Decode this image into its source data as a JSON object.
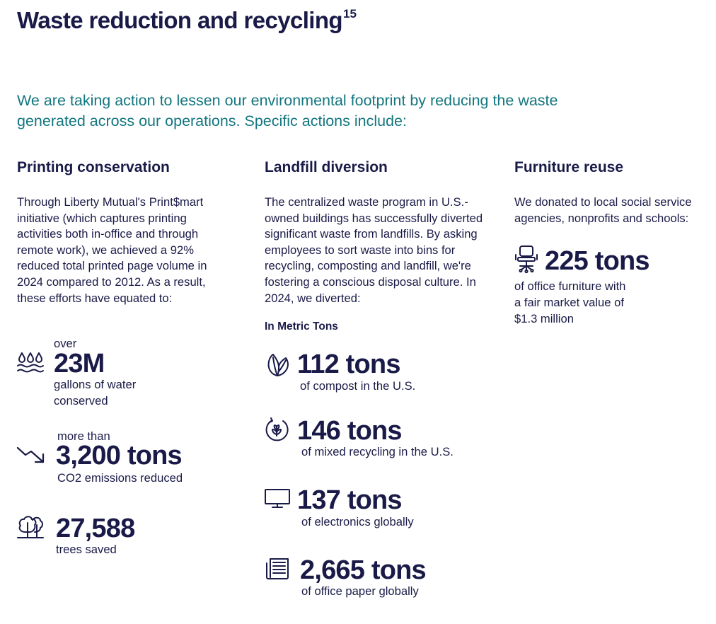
{
  "title": "Waste reduction and recycling",
  "title_footnote": "15",
  "intro": "We are taking action to lessen our environmental footprint by reducing the waste generated across our operations. Specific actions include:",
  "printing": {
    "heading": "Printing conservation",
    "body": "Through Liberty Mutual's Print$mart initiative (which captures printing activities both in-office and through remote work), we achieved a 92% reduced total printed page volume in 2024 compared to 2012. As a result, these efforts have equated to:",
    "stats": [
      {
        "icon": "water-icon",
        "prefix": "over",
        "value": "23M",
        "desc_lines": [
          "gallons of water",
          "conserved"
        ]
      },
      {
        "icon": "trend-down-icon",
        "prefix": "more than",
        "value": "3,200 tons",
        "desc_lines": [
          "CO2 emissions reduced"
        ]
      },
      {
        "icon": "trees-icon",
        "prefix": "",
        "value": "27,588",
        "desc_lines": [
          "trees saved"
        ]
      }
    ]
  },
  "landfill": {
    "heading": "Landfill diversion",
    "body": "The centralized waste program in U.S.- owned buildings has successfully diverted significant waste from landfills. By asking employees to sort waste into bins for recycling, composting and landfill, we're fostering a conscious disposal culture. In 2024, we diverted:",
    "units_label": "In Metric Tons",
    "stats": [
      {
        "icon": "leaf-icon",
        "value": "112 tons",
        "desc": "of compost in the U.S."
      },
      {
        "icon": "recycle-icon",
        "value": "146 tons",
        "desc": "of mixed recycling in the U.S."
      },
      {
        "icon": "monitor-icon",
        "value": "137 tons",
        "desc": "of electronics globally"
      },
      {
        "icon": "document-icon",
        "value": "2,665 tons",
        "desc": "of office paper globally"
      }
    ]
  },
  "furniture": {
    "heading": "Furniture reuse",
    "body": "We donated to local social service agencies, nonprofits and schools:",
    "stat": {
      "icon": "office-chair-icon",
      "value": "225 tons",
      "desc_lines": [
        "of office furniture with",
        "a fair market value of",
        "$1.3 million"
      ]
    }
  }
}
